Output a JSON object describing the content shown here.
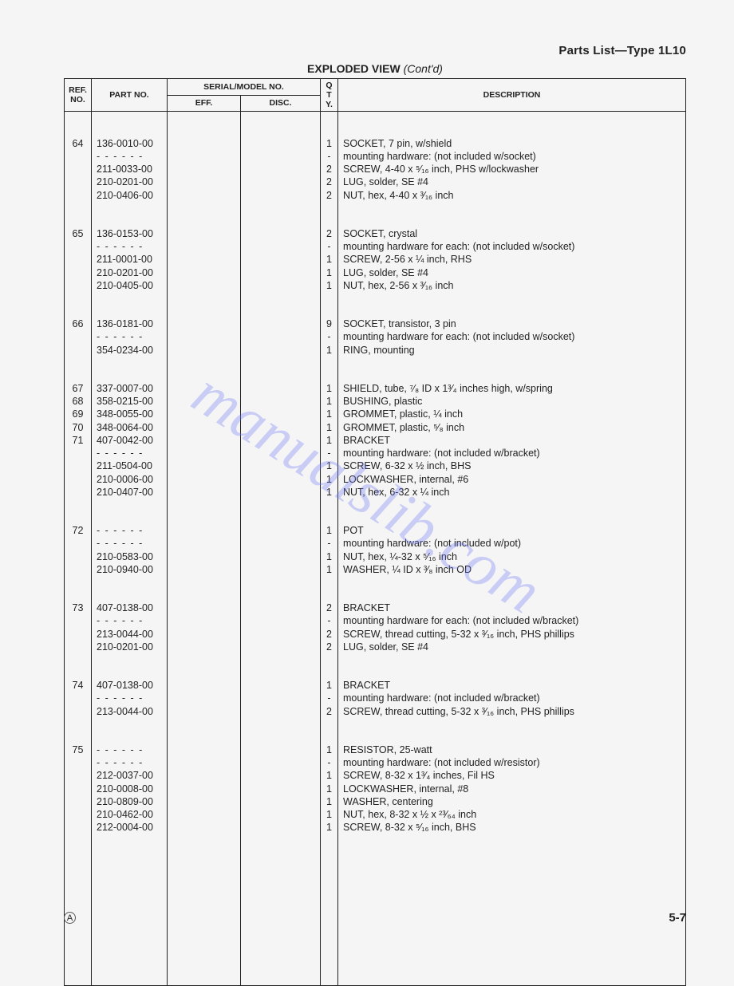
{
  "header": {
    "page_title": "Parts List—Type 1L10",
    "view_title": "EXPLODED VIEW",
    "contd": "(Cont'd)"
  },
  "columns": {
    "ref": "REF. NO.",
    "part": "PART NO.",
    "serial": "SERIAL/MODEL NO.",
    "eff": "EFF.",
    "disc": "DISC.",
    "qty": "Q T Y.",
    "desc": "DESCRIPTION"
  },
  "rows": [
    {
      "type": "gap"
    },
    {
      "ref": "64",
      "part": "136-0010-00",
      "qty": "1",
      "desc": "SOCKET, 7 pin, w/shield"
    },
    {
      "ref": "",
      "part": "- - - - - -",
      "qty": "-",
      "desc": "mounting hardware: (not included w/socket)",
      "dash": true
    },
    {
      "ref": "",
      "part": "211-0033-00",
      "qty": "2",
      "desc": "SCREW, 4-40 x ⁵⁄₁₆ inch, PHS w/lockwasher"
    },
    {
      "ref": "",
      "part": "210-0201-00",
      "qty": "2",
      "desc": "LUG, solder, SE #4"
    },
    {
      "ref": "",
      "part": "210-0406-00",
      "qty": "2",
      "desc": "NUT, hex, 4-40 x ³⁄₁₆ inch"
    },
    {
      "type": "gap"
    },
    {
      "ref": "65",
      "part": "136-0153-00",
      "qty": "2",
      "desc": "SOCKET, crystal"
    },
    {
      "ref": "",
      "part": "- - - - - -",
      "qty": "-",
      "desc": "mounting hardware for each: (not included w/socket)",
      "dash": true
    },
    {
      "ref": "",
      "part": "211-0001-00",
      "qty": "1",
      "desc": "SCREW, 2-56 x ¼ inch, RHS"
    },
    {
      "ref": "",
      "part": "210-0201-00",
      "qty": "1",
      "desc": "LUG, solder, SE #4"
    },
    {
      "ref": "",
      "part": "210-0405-00",
      "qty": "1",
      "desc": "NUT, hex, 2-56 x ³⁄₁₆ inch"
    },
    {
      "type": "gap"
    },
    {
      "ref": "66",
      "part": "136-0181-00",
      "qty": "9",
      "desc": "SOCKET, transistor, 3 pin"
    },
    {
      "ref": "",
      "part": "- - - - - -",
      "qty": "-",
      "desc": "mounting hardware for each: (not included w/socket)",
      "dash": true
    },
    {
      "ref": "",
      "part": "354-0234-00",
      "qty": "1",
      "desc": "RING, mounting"
    },
    {
      "type": "gap"
    },
    {
      "ref": "67",
      "part": "337-0007-00",
      "qty": "1",
      "desc": "SHIELD, tube, ⁷⁄₈ ID x 1³⁄₄ inches high, w/spring"
    },
    {
      "ref": "68",
      "part": "358-0215-00",
      "qty": "1",
      "desc": "BUSHING, plastic"
    },
    {
      "ref": "69",
      "part": "348-0055-00",
      "qty": "1",
      "desc": "GROMMET, plastic, ¼ inch"
    },
    {
      "ref": "70",
      "part": "348-0064-00",
      "qty": "1",
      "desc": "GROMMET, plastic, ⁵⁄₈ inch"
    },
    {
      "ref": "71",
      "part": "407-0042-00",
      "qty": "1",
      "desc": "BRACKET"
    },
    {
      "ref": "",
      "part": "- - - - - -",
      "qty": "-",
      "desc": "mounting hardware: (not included w/bracket)",
      "dash": true
    },
    {
      "ref": "",
      "part": "211-0504-00",
      "qty": "1",
      "desc": "SCREW, 6-32 x ½ inch, BHS"
    },
    {
      "ref": "",
      "part": "210-0006-00",
      "qty": "1",
      "desc": "LOCKWASHER, internal, #6"
    },
    {
      "ref": "",
      "part": "210-0407-00",
      "qty": "1",
      "desc": "NUT, hex, 6-32 x ¼ inch"
    },
    {
      "type": "gap"
    },
    {
      "ref": "72",
      "part": "- - - - - -",
      "qty": "1",
      "desc": "POT",
      "dash": true
    },
    {
      "ref": "",
      "part": "- - - - - -",
      "qty": "-",
      "desc": "mounting hardware: (not included w/pot)",
      "dash": true
    },
    {
      "ref": "",
      "part": "210-0583-00",
      "qty": "1",
      "desc": "NUT, hex, ¼-32 x ⁵⁄₁₆ inch"
    },
    {
      "ref": "",
      "part": "210-0940-00",
      "qty": "1",
      "desc": "WASHER, ¼ ID x ³⁄₈ inch OD"
    },
    {
      "type": "gap"
    },
    {
      "ref": "73",
      "part": "407-0138-00",
      "qty": "2",
      "desc": "BRACKET"
    },
    {
      "ref": "",
      "part": "- - - - - -",
      "qty": "-",
      "desc": "mounting hardware for each: (not included w/bracket)",
      "dash": true
    },
    {
      "ref": "",
      "part": "213-0044-00",
      "qty": "2",
      "desc": "SCREW, thread cutting, 5-32 x ³⁄₁₆ inch, PHS phillips"
    },
    {
      "ref": "",
      "part": "210-0201-00",
      "qty": "2",
      "desc": "LUG, solder, SE #4"
    },
    {
      "type": "gap"
    },
    {
      "ref": "74",
      "part": "407-0138-00",
      "qty": "1",
      "desc": "BRACKET"
    },
    {
      "ref": "",
      "part": "- - - - - -",
      "qty": "-",
      "desc": "mounting hardware: (not included w/bracket)",
      "dash": true
    },
    {
      "ref": "",
      "part": "213-0044-00",
      "qty": "2",
      "desc": "SCREW, thread cutting, 5-32 x ³⁄₁₆ inch, PHS phillips"
    },
    {
      "type": "gap"
    },
    {
      "ref": "75",
      "part": "- - - - - -",
      "qty": "1",
      "desc": "RESISTOR, 25-watt",
      "dash": true
    },
    {
      "ref": "",
      "part": "- - - - - -",
      "qty": "-",
      "desc": "mounting hardware: (not included w/resistor)",
      "dash": true
    },
    {
      "ref": "",
      "part": "212-0037-00",
      "qty": "1",
      "desc": "SCREW, 8-32 x 1³⁄₄ inches, Fil HS"
    },
    {
      "ref": "",
      "part": "210-0008-00",
      "qty": "1",
      "desc": "LOCKWASHER, internal, #8"
    },
    {
      "ref": "",
      "part": "210-0809-00",
      "qty": "1",
      "desc": "WASHER, centering"
    },
    {
      "ref": "",
      "part": "210-0462-00",
      "qty": "1",
      "desc": "NUT, hex, 8-32 x ½ x ²³⁄₆₄ inch"
    },
    {
      "ref": "",
      "part": "212-0004-00",
      "qty": "1",
      "desc": "SCREW, 8-32 x ⁵⁄₁₆ inch, BHS"
    }
  ],
  "watermark": "manualslib.com",
  "footer": {
    "symbol": "A",
    "page_num": "5-7"
  }
}
